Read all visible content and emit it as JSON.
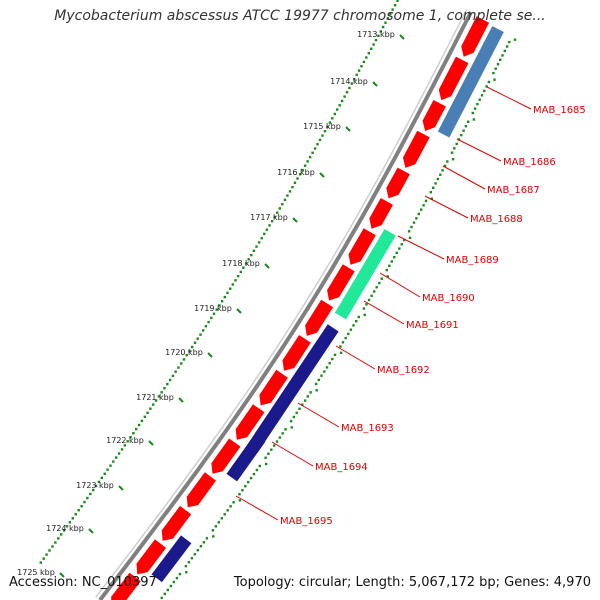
{
  "title": "Mycobacterium abscessus ATCC 19977 chromosome 1, complete se...",
  "footer": {
    "accession": "Accession: NC_010397",
    "topology": "Topology: circular; Length: 5,067,172 bp; Genes: 4,970"
  },
  "tick_labels": [
    "1713 kbp",
    "1714 kbp",
    "1715 kbp",
    "1716 kbp",
    "1717 kbp",
    "1718 kbp",
    "1719 kbp",
    "1720 kbp",
    "1721 kbp",
    "1722 kbp",
    "1723 kbp",
    "1724 kbp",
    "1725 kbp"
  ],
  "genes": [
    {
      "name": "MAB_1685",
      "feature_color": "#4a7fb5"
    },
    {
      "name": "MAB_1686",
      "feature_color": ""
    },
    {
      "name": "MAB_1687",
      "feature_color": ""
    },
    {
      "name": "MAB_1688",
      "feature_color": ""
    },
    {
      "name": "MAB_1689",
      "feature_color": "#22e89a"
    },
    {
      "name": "MAB_1690",
      "feature_color": ""
    },
    {
      "name": "MAB_1691",
      "feature_color": ""
    },
    {
      "name": "MAB_1692",
      "feature_color": "#1a1a8c"
    },
    {
      "name": "MAB_1693",
      "feature_color": ""
    },
    {
      "name": "MAB_1694",
      "feature_color": "#1a1a8c"
    },
    {
      "name": "MAB_1695",
      "feature_color": "#1a1a8c"
    }
  ],
  "colors": {
    "backbone": "#808080",
    "cds": "#ff0000",
    "label": "#e00000",
    "gc_dots": "#1a8a1a"
  }
}
